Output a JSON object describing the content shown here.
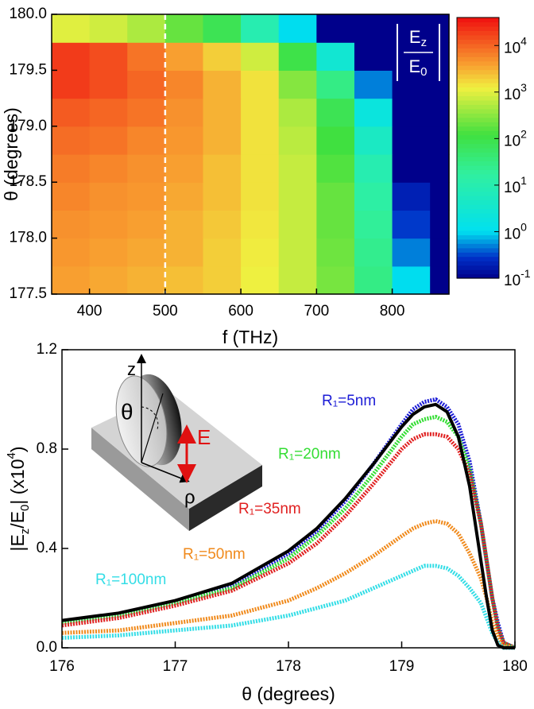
{
  "chart_data": [
    {
      "type": "heatmap",
      "xlabel": "f (THz)",
      "ylabel": "θ (degrees)",
      "xlim": [
        350,
        875
      ],
      "ylim": [
        177.5,
        180
      ],
      "xticks": [
        400,
        500,
        600,
        700,
        800
      ],
      "yticks": [
        177.5,
        {
          "value": 178,
          "label": "178.0"
        },
        178.5,
        {
          "value": 179,
          "label": "179.0"
        },
        179.5,
        {
          "value": 180,
          "label": "180.0"
        }
      ],
      "x_edges": [
        350,
        400,
        450,
        500,
        550,
        600,
        650,
        700,
        750,
        800,
        850,
        875
      ],
      "y_edges": [
        177.5,
        177.75,
        178,
        178.25,
        178.5,
        178.75,
        179,
        179.25,
        179.5,
        179.75,
        180
      ],
      "z": [
        [
          4000,
          3500,
          3000,
          2500,
          2000,
          1200,
          700,
          250,
          30,
          1,
          0.1
        ],
        [
          4500,
          4000,
          3500,
          3000,
          2000,
          1300,
          700,
          220,
          25,
          0.5,
          0.1
        ],
        [
          5000,
          4500,
          4000,
          3000,
          2200,
          1400,
          700,
          200,
          20,
          0.3,
          0.1
        ],
        [
          6000,
          5000,
          4500,
          3500,
          2500,
          1500,
          700,
          200,
          15,
          0.2,
          0.1
        ],
        [
          7000,
          6000,
          5000,
          4000,
          2500,
          1500,
          700,
          150,
          10,
          0.1,
          0.1
        ],
        [
          9000,
          8000,
          6000,
          4500,
          3000,
          1500,
          600,
          120,
          5,
          0.1,
          0.1
        ],
        [
          12000,
          10000,
          8000,
          5000,
          3000,
          1500,
          500,
          80,
          2,
          0.1,
          0.1
        ],
        [
          20000,
          15000,
          10000,
          6000,
          3000,
          1500,
          300,
          30,
          0.5,
          0.1,
          0.1
        ],
        [
          20000,
          15000,
          8000,
          4000,
          2000,
          800,
          100,
          3,
          0.1,
          0.1,
          0.1
        ],
        [
          1000,
          800,
          500,
          200,
          80,
          10,
          1,
          0.1,
          0.1,
          0.1,
          0.1
        ]
      ],
      "vlines": [
        {
          "x": 500,
          "color": "#ffffff",
          "dashed": true
        }
      ],
      "colorbar": {
        "log": true,
        "clim": [
          0.1,
          40000
        ],
        "label": {
          "numerator": "E",
          "numerator_sub": "z",
          "denominator": "E",
          "denominator_sub": "0"
        },
        "ticks": [
          {
            "value": 0.1,
            "label": "10",
            "exponent": "-1"
          },
          {
            "value": 1,
            "label": "10",
            "exponent": "0"
          },
          {
            "value": 10,
            "label": "10",
            "exponent": "1"
          },
          {
            "value": 100,
            "label": "10",
            "exponent": "2"
          },
          {
            "value": 1000,
            "label": "10",
            "exponent": "3"
          },
          {
            "value": 10000,
            "label": "10",
            "exponent": "4"
          }
        ]
      }
    },
    {
      "type": "line",
      "xlabel": "θ (degrees)",
      "ylabel": [
        "|E",
        "z",
        "/E",
        "0",
        "| (x10",
        "4",
        ")"
      ],
      "xlim": [
        176,
        180
      ],
      "ylim": [
        0,
        1.2
      ],
      "xticks": [
        176,
        177,
        178,
        179,
        180
      ],
      "yticks": [
        {
          "value": 0,
          "label": "0.0"
        },
        0.4,
        0.8,
        1.2
      ],
      "x": [
        176,
        176.5,
        177,
        177.5,
        178,
        178.25,
        178.5,
        178.75,
        179,
        179.1,
        179.2,
        179.3,
        179.4,
        179.5,
        179.6,
        179.7,
        179.75,
        179.8,
        179.85,
        179.9,
        180
      ],
      "series": [
        {
          "name": "R₁=5nm",
          "color": "#1c1cd6",
          "values": [
            0.1,
            0.13,
            0.18,
            0.25,
            0.38,
            0.47,
            0.59,
            0.74,
            0.9,
            0.96,
            0.99,
            1.0,
            0.97,
            0.9,
            0.75,
            0.5,
            0.35,
            0.2,
            0.1,
            0.02,
            0
          ]
        },
        {
          "name": "R₁=20nm",
          "color": "#33dd33",
          "values": [
            0.1,
            0.13,
            0.18,
            0.24,
            0.36,
            0.45,
            0.56,
            0.7,
            0.85,
            0.9,
            0.92,
            0.93,
            0.91,
            0.85,
            0.72,
            0.5,
            0.35,
            0.2,
            0.08,
            0.02,
            0
          ]
        },
        {
          "name": "R₁=35nm",
          "color": "#e02020",
          "values": [
            0.09,
            0.12,
            0.17,
            0.23,
            0.34,
            0.42,
            0.53,
            0.66,
            0.8,
            0.84,
            0.86,
            0.86,
            0.85,
            0.8,
            0.7,
            0.5,
            0.35,
            0.2,
            0.08,
            0.02,
            0
          ]
        },
        {
          "name": "R₁=50nm",
          "color": "#f08a1c",
          "values": [
            0.06,
            0.07,
            0.1,
            0.13,
            0.19,
            0.24,
            0.3,
            0.37,
            0.45,
            0.48,
            0.5,
            0.51,
            0.5,
            0.46,
            0.38,
            0.28,
            0.2,
            0.1,
            0.04,
            0.01,
            0
          ]
        },
        {
          "name": "R₁=100nm",
          "color": "#33dde6",
          "values": [
            0.04,
            0.05,
            0.07,
            0.09,
            0.13,
            0.16,
            0.19,
            0.24,
            0.29,
            0.31,
            0.33,
            0.33,
            0.32,
            0.29,
            0.24,
            0.18,
            0.12,
            0.06,
            0.02,
            0,
            0
          ]
        },
        {
          "color": "#000000",
          "values": [
            0.11,
            0.14,
            0.19,
            0.26,
            0.39,
            0.48,
            0.6,
            0.74,
            0.89,
            0.94,
            0.97,
            0.98,
            0.95,
            0.85,
            0.65,
            0.35,
            0.2,
            0.07,
            0.01,
            0,
            0
          ]
        }
      ],
      "inset": {
        "labels": [
          "z",
          "θ",
          "E",
          "ρ"
        ]
      }
    }
  ]
}
